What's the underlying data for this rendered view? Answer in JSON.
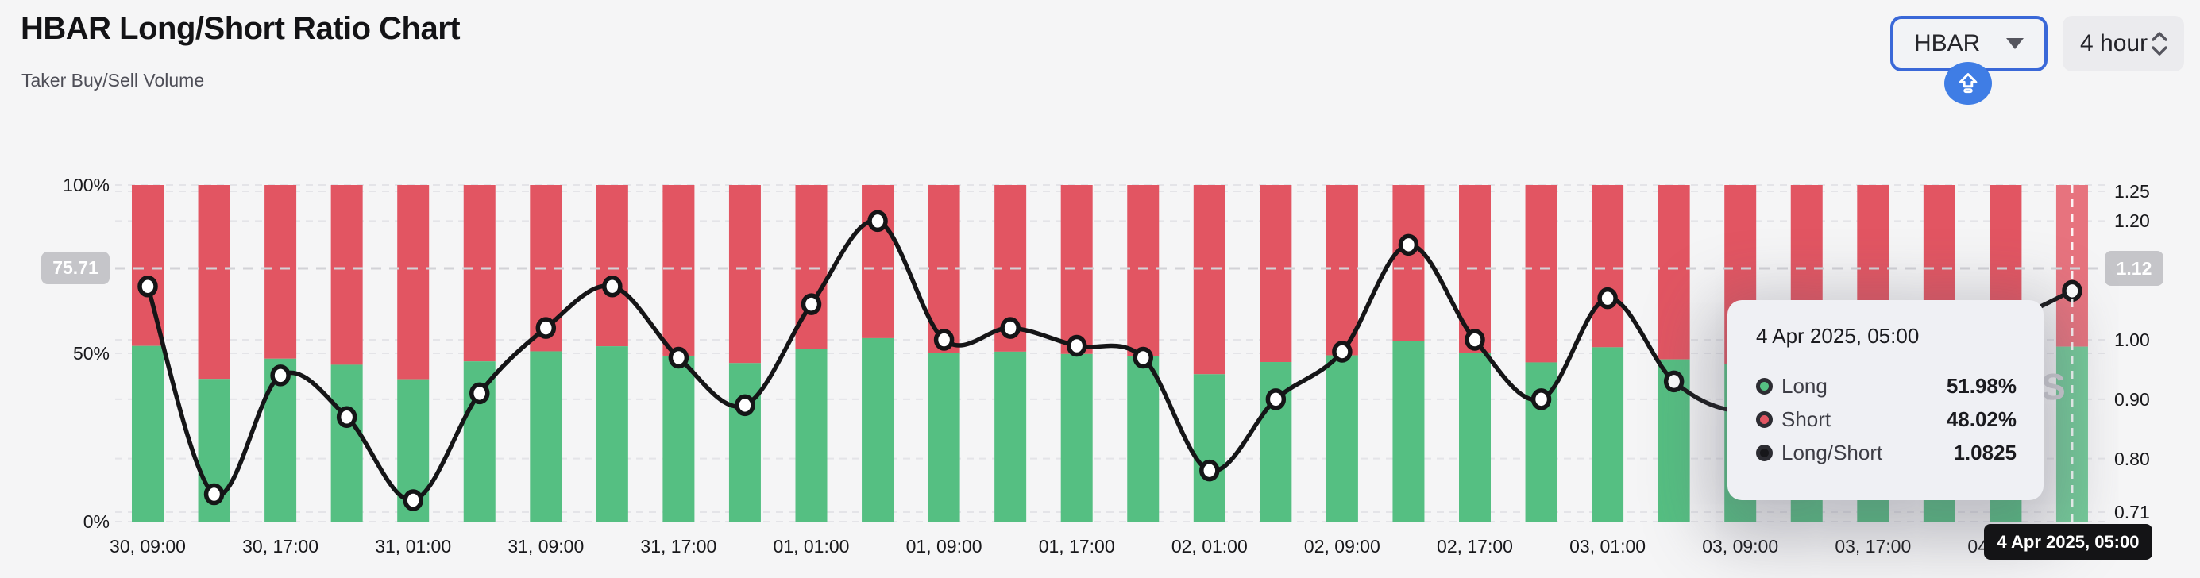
{
  "header": {
    "title": "HBAR Long/Short Ratio Chart",
    "subtitle": "Taker Buy/Sell Volume"
  },
  "controls": {
    "symbol_select": {
      "value": "HBAR"
    },
    "interval_select": {
      "value": "4 hour"
    },
    "accent_blue": "#3a68d8",
    "upload_badge_blue": "#3f7de5"
  },
  "colors": {
    "long_green": "#55bf82",
    "short_red": "#e25562",
    "ratio_line": "#151517",
    "background": "#f5f5f6",
    "gridline": "#e4e4e8",
    "crosshair": "#cicccc",
    "badge_gray": "#c5c5c9"
  },
  "chart_data": {
    "type": "bar+line",
    "title": "HBAR Long/Short Ratio Chart",
    "bar_count": 30,
    "interval_hours": 4,
    "x_tick_labels": [
      {
        "index": 0,
        "label": "30, 09:00"
      },
      {
        "index": 2,
        "label": "30, 17:00"
      },
      {
        "index": 4,
        "label": "31, 01:00"
      },
      {
        "index": 6,
        "label": "31, 09:00"
      },
      {
        "index": 8,
        "label": "31, 17:00"
      },
      {
        "index": 10,
        "label": "01, 01:00"
      },
      {
        "index": 12,
        "label": "01, 09:00"
      },
      {
        "index": 14,
        "label": "01, 17:00"
      },
      {
        "index": 16,
        "label": "02, 01:00"
      },
      {
        "index": 18,
        "label": "02, 09:00"
      },
      {
        "index": 20,
        "label": "02, 17:00"
      },
      {
        "index": 22,
        "label": "03, 01:00"
      },
      {
        "index": 24,
        "label": "03, 09:00"
      },
      {
        "index": 26,
        "label": "03, 17:00"
      },
      {
        "index": 28,
        "label": "04, 01:00"
      }
    ],
    "series": [
      {
        "name": "Long",
        "type": "bar",
        "stack": "percent",
        "color": "#55bf82",
        "values": [
          52.2,
          42.4,
          48.4,
          46.6,
          42.3,
          47.6,
          50.6,
          52.1,
          49.3,
          47.1,
          51.4,
          54.5,
          50.0,
          50.5,
          49.8,
          49.2,
          43.8,
          47.4,
          49.4,
          53.7,
          50.1,
          47.3,
          51.8,
          48.2,
          46.8,
          47.9,
          49.2,
          50.0,
          50.7,
          51.98
        ]
      },
      {
        "name": "Short",
        "type": "bar",
        "stack": "percent",
        "color": "#e25562",
        "values": [
          47.8,
          57.6,
          51.6,
          53.4,
          57.7,
          52.4,
          49.4,
          47.9,
          50.7,
          52.9,
          48.6,
          45.5,
          50.0,
          49.5,
          50.2,
          50.8,
          56.2,
          52.6,
          50.6,
          46.3,
          49.9,
          52.7,
          48.2,
          51.8,
          53.2,
          52.1,
          50.8,
          50.0,
          49.3,
          48.02
        ]
      },
      {
        "name": "Long/Short",
        "type": "line",
        "color": "#151517",
        "values": [
          1.09,
          0.74,
          0.94,
          0.87,
          0.73,
          0.91,
          1.02,
          1.09,
          0.97,
          0.89,
          1.06,
          1.2,
          1.0,
          1.02,
          0.99,
          0.97,
          0.78,
          0.9,
          0.98,
          1.16,
          1.0,
          0.9,
          1.07,
          0.93,
          0.88,
          0.92,
          0.97,
          1.0,
          1.03,
          1.0825
        ]
      }
    ],
    "left_axis": {
      "ticks": [
        "100%",
        "50%",
        "0%"
      ],
      "min": 0,
      "max": 100,
      "unit": "%"
    },
    "right_axis": {
      "ticks": [
        1.25,
        1.2,
        1.12,
        1.0,
        0.9,
        0.8,
        0.71
      ],
      "min": 0.71,
      "max": 1.25,
      "highlighted_tick": 1.12
    },
    "grid": "dashed",
    "legend_position": "none",
    "hovered_index": 29
  },
  "crosshair": {
    "left_badge": "75.71",
    "right_badge": "1.12"
  },
  "tooltip": {
    "title": "4 Apr 2025, 05:00",
    "rows": [
      {
        "label": "Long",
        "value": "51.98%",
        "marker_color": "#55bf82"
      },
      {
        "label": "Short",
        "value": "48.02%",
        "marker_color": "#e25562"
      },
      {
        "label": "Long/Short",
        "value": "1.0825",
        "marker_color": "#17171a"
      }
    ]
  },
  "x_axis_tooltip": "4 Apr 2025, 05:00",
  "watermark_fragment": "S"
}
